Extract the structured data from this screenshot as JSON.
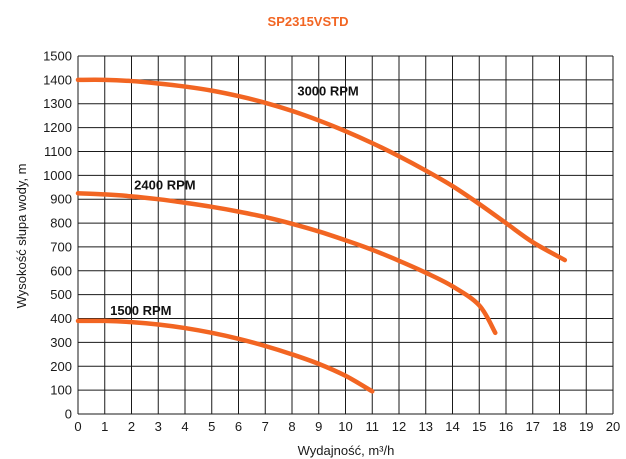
{
  "chart_data": {
    "type": "line",
    "title": "SP2315VSTD",
    "xlabel": "Wydajność, m³/h",
    "ylabel": "Wysokość słupa wody, m",
    "xlim": [
      0,
      20
    ],
    "ylim": [
      0,
      1500
    ],
    "x_ticks": [
      "0",
      "1",
      "2",
      "3",
      "4",
      "5",
      "6",
      "7",
      "8",
      "9",
      "10",
      "11",
      "12",
      "13",
      "14",
      "15",
      "16",
      "17",
      "18",
      "19",
      "20"
    ],
    "y_ticks": [
      "0",
      "100",
      "200",
      "300",
      "400",
      "500",
      "600",
      "700",
      "800",
      "900",
      "1000",
      "1100",
      "1200",
      "1300",
      "1400",
      "1500"
    ],
    "grid": true,
    "colors": {
      "title": "#f26522",
      "curve": "#f26522"
    },
    "series": [
      {
        "name": "3000 RPM",
        "points": [
          [
            0,
            1400
          ],
          [
            1,
            1400
          ],
          [
            2,
            1395
          ],
          [
            3,
            1385
          ],
          [
            4,
            1372
          ],
          [
            5,
            1355
          ],
          [
            6,
            1332
          ],
          [
            7,
            1304
          ],
          [
            8,
            1270
          ],
          [
            9,
            1230
          ],
          [
            10,
            1185
          ],
          [
            11,
            1135
          ],
          [
            12,
            1080
          ],
          [
            13,
            1020
          ],
          [
            14,
            955
          ],
          [
            15,
            880
          ],
          [
            16,
            800
          ],
          [
            17,
            720
          ],
          [
            18.2,
            645
          ]
        ]
      },
      {
        "name": "2400 RPM",
        "points": [
          [
            0,
            925
          ],
          [
            1,
            920
          ],
          [
            2,
            912
          ],
          [
            3,
            900
          ],
          [
            4,
            885
          ],
          [
            5,
            868
          ],
          [
            6,
            848
          ],
          [
            7,
            825
          ],
          [
            8,
            797
          ],
          [
            9,
            765
          ],
          [
            10,
            728
          ],
          [
            11,
            688
          ],
          [
            12,
            642
          ],
          [
            13,
            592
          ],
          [
            14,
            535
          ],
          [
            15,
            455
          ],
          [
            15.6,
            340
          ]
        ]
      },
      {
        "name": "1500 RPM",
        "points": [
          [
            0,
            390
          ],
          [
            1,
            390
          ],
          [
            2,
            385
          ],
          [
            3,
            375
          ],
          [
            4,
            360
          ],
          [
            5,
            340
          ],
          [
            6,
            315
          ],
          [
            7,
            285
          ],
          [
            8,
            250
          ],
          [
            9,
            210
          ],
          [
            10,
            160
          ],
          [
            11,
            95
          ]
        ]
      }
    ]
  }
}
